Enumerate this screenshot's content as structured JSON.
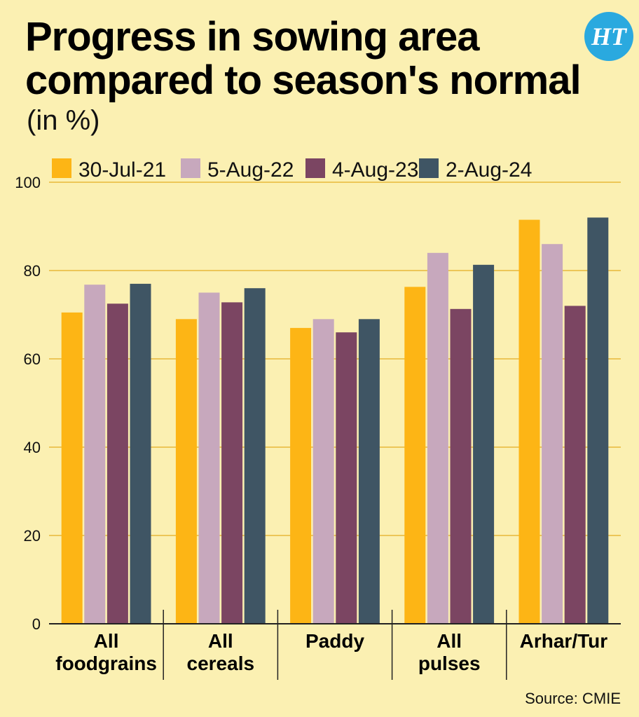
{
  "header": {
    "title_line1": "Progress in sowing area",
    "title_line2": "compared to season's normal",
    "subtitle": "(in %)",
    "logo_text": "HT",
    "source": "Source: CMIE"
  },
  "colors": {
    "background": "#fbf0b2",
    "gridline": "#e8b83a",
    "axis": "#222222"
  },
  "chart_data": {
    "type": "bar",
    "title": "Progress in sowing area compared to season's normal",
    "subtitle": "(in %)",
    "xlabel": "",
    "ylabel": "",
    "ylim": [
      0,
      100
    ],
    "yticks": [
      0,
      20,
      40,
      60,
      80,
      100
    ],
    "grid": true,
    "legend_position": "top",
    "categories": [
      [
        "All",
        "foodgrains"
      ],
      [
        "All",
        "cereals"
      ],
      [
        "Paddy"
      ],
      [
        "All",
        "pulses"
      ],
      [
        "Arhar/Tur"
      ]
    ],
    "series": [
      {
        "name": "30-Jul-21",
        "color": "#fdb515",
        "values": [
          70.5,
          69.0,
          67.0,
          76.3,
          91.5
        ]
      },
      {
        "name": "5-Aug-22",
        "color": "#c7a8bd",
        "values": [
          76.8,
          75.0,
          69.0,
          84.0,
          86.0
        ]
      },
      {
        "name": "4-Aug-23",
        "color": "#7b4562",
        "values": [
          72.5,
          72.8,
          66.0,
          71.3,
          72.0
        ]
      },
      {
        "name": "2-Aug-24",
        "color": "#3f5564",
        "values": [
          77.0,
          76.0,
          69.0,
          81.3,
          92.0
        ]
      }
    ],
    "source": "Source: CMIE"
  }
}
